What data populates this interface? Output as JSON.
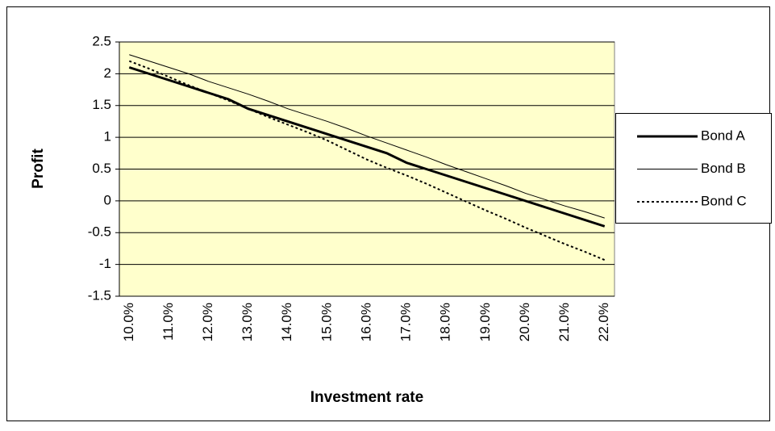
{
  "chart_data": {
    "type": "line",
    "x_label": "Investment rate",
    "y_label": "Profit",
    "categories": [
      "10.0%",
      null,
      "11.0%",
      null,
      "12.0%",
      null,
      "13.0%",
      null,
      "14.0%",
      null,
      "15.0%",
      null,
      "16.0%",
      null,
      "17.0%",
      null,
      "18.0%",
      null,
      "19.0%",
      null,
      "20.0%",
      null,
      "21.0%",
      null,
      "22.0%"
    ],
    "series": [
      {
        "name": "Bond A",
        "color": "#000000",
        "width": 3,
        "dash": "solid",
        "values": [
          2.1,
          2.0,
          1.9,
          1.8,
          1.7,
          1.6,
          1.45,
          1.35,
          1.25,
          1.15,
          1.05,
          0.95,
          0.85,
          0.75,
          0.6,
          0.5,
          0.4,
          0.3,
          0.2,
          0.1,
          0.0,
          -0.1,
          -0.2,
          -0.3,
          -0.4
        ]
      },
      {
        "name": "Bond B",
        "color": "#000000",
        "width": 1,
        "dash": "solid",
        "values": [
          2.3,
          2.2,
          2.1,
          2.0,
          1.88,
          1.78,
          1.68,
          1.57,
          1.45,
          1.35,
          1.25,
          1.14,
          1.02,
          0.91,
          0.8,
          0.69,
          0.57,
          0.46,
          0.35,
          0.24,
          0.12,
          0.02,
          -0.08,
          -0.17,
          -0.27
        ]
      },
      {
        "name": "Bond C",
        "color": "#000000",
        "width": 2,
        "dash": "dotted",
        "values": [
          2.2,
          2.08,
          1.95,
          1.82,
          1.7,
          1.58,
          1.45,
          1.32,
          1.2,
          1.08,
          0.95,
          0.8,
          0.65,
          0.52,
          0.4,
          0.27,
          0.13,
          -0.01,
          -0.15,
          -0.28,
          -0.42,
          -0.55,
          -0.68,
          -0.8,
          -0.93
        ]
      }
    ],
    "ylim": [
      -1.5,
      2.5
    ],
    "yticks": [
      2.5,
      2,
      1.5,
      1,
      0.5,
      0,
      -0.5,
      -1,
      -1.5
    ],
    "grid": true,
    "legend": "right",
    "plot_background": "#ffffcc"
  }
}
